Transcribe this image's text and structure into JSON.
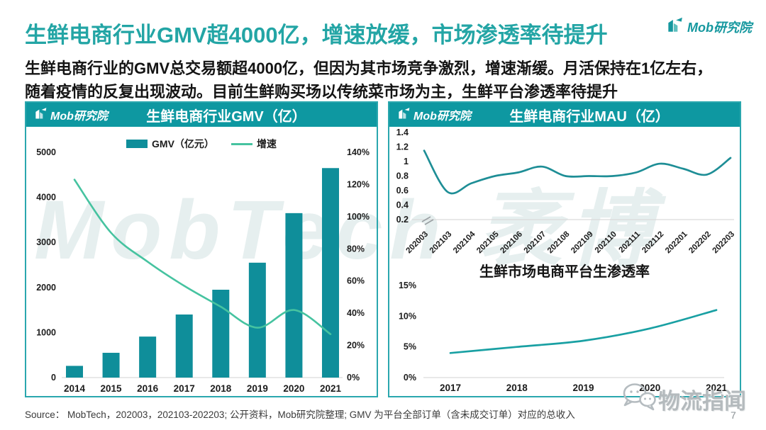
{
  "page": {
    "title": "生鲜电商行业GMV超4000亿，增速放缓，市场渗透率待提升",
    "subtitle_line1": "生鲜电商行业的GMV总交易额超4000亿，但因为其市场竞争激烈，增速渐缓。月活保持在1亿左右，",
    "subtitle_line2": "随着疫情的反复出现波动。目前生鲜购买场以传统菜市场为主，生鲜平台渗透率待提升",
    "logo_text": "Mob研究院",
    "source_text": "Source：  MobTech，202003，202103-202203;  公开资料，Mob研究院整理;  GMV 为平台全部订单（含未成交订单）对应的总收入",
    "page_number": "7",
    "watermark_center": "MobTech 袤博",
    "watermark_corner": "物流指闻"
  },
  "colors": {
    "teal_header": "#0E98A1",
    "teal_bar": "#0F8E9A",
    "growth_line": "#46C3A0",
    "mau_line": "#1E8E96",
    "pen_line": "#19A0A3",
    "title": "#23A5A5",
    "border": "#2AA7AE",
    "grid": "#D9D9D9",
    "tick_text": "#1C1C1C",
    "watermark_center": "#CFE0E0",
    "watermark_corner": "#B4BABD"
  },
  "chart_data": [
    {
      "type": "bar",
      "title": "生鲜电商行业GMV（亿）",
      "categories": [
        "2014",
        "2015",
        "2016",
        "2017",
        "2018",
        "2019",
        "2020",
        "2021"
      ],
      "series": [
        {
          "name": "GMV（亿元）",
          "type": "bar",
          "axis": "left",
          "values": [
            260,
            550,
            910,
            1400,
            1950,
            2550,
            3650,
            4650
          ]
        },
        {
          "name": "增速",
          "type": "line",
          "axis": "right",
          "values": [
            123,
            90,
            72,
            57,
            44,
            31,
            42,
            27
          ]
        }
      ],
      "left_axis": {
        "min": 0,
        "max": 5000,
        "ticks": [
          0,
          1000,
          2000,
          3000,
          4000,
          5000
        ],
        "unit": ""
      },
      "right_axis": {
        "min": 0,
        "max": 140,
        "ticks": [
          0,
          20,
          40,
          60,
          80,
          100,
          120,
          140
        ],
        "unit": "%"
      },
      "legend_position": "top",
      "grid": false
    },
    {
      "type": "line",
      "title": "生鲜电商行业MAU（亿）",
      "x": [
        "202003",
        "202103",
        "202104",
        "202105",
        "202106",
        "202107",
        "202108",
        "202109",
        "202110",
        "202111",
        "202112",
        "202201",
        "202202",
        "202203"
      ],
      "values": [
        1.15,
        0.58,
        0.7,
        0.8,
        0.85,
        0.93,
        0.8,
        0.8,
        0.8,
        0.85,
        0.97,
        0.9,
        0.82,
        1.05
      ],
      "ylim": [
        0.2,
        1.4
      ],
      "yticks": [
        1.4,
        1.2,
        1,
        0.8,
        0.6,
        0.4,
        0.2
      ],
      "axis_break": true,
      "grid": false
    },
    {
      "type": "line",
      "title": "生鲜市场电商平台生渗透率",
      "x": [
        "2017",
        "2018",
        "2019",
        "2020",
        "2021"
      ],
      "values": [
        4,
        5,
        6,
        8,
        11
      ],
      "ylim": [
        0,
        15
      ],
      "yticks": [
        15,
        10,
        5,
        0
      ],
      "unit": "%",
      "grid": false
    }
  ]
}
